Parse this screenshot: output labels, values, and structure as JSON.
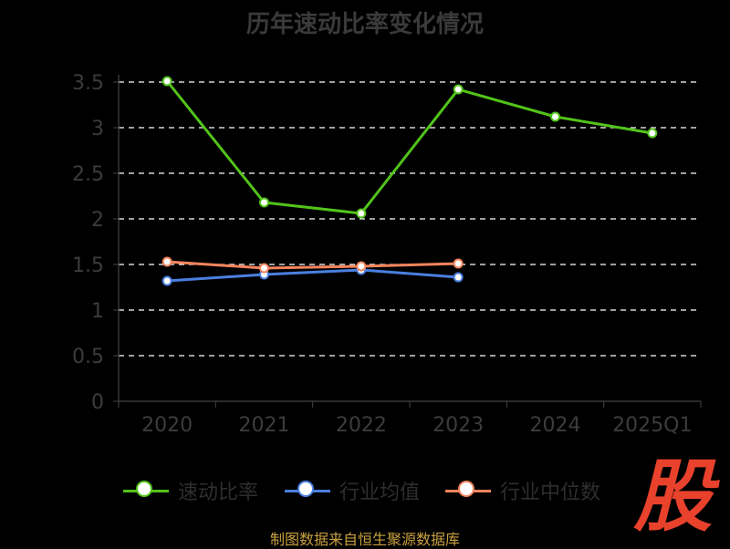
{
  "title": "历年速动比率变化情况",
  "source": "制图数据来自恒生聚源数据库",
  "logo_text": "股",
  "chart_data": {
    "type": "line",
    "title": "历年速动比率变化情况",
    "categories": [
      "2020",
      "2021",
      "2022",
      "2023",
      "2024",
      "2025Q1"
    ],
    "y_ticks": [
      "0",
      "0.5",
      "1",
      "1.5",
      "2",
      "2.5",
      "3",
      "3.5"
    ],
    "ylim": [
      0,
      3.5
    ],
    "grid": true,
    "legend_position": "bottom",
    "series": [
      {
        "name": "速动比率",
        "color": "#52c41a",
        "values": [
          3.51,
          2.18,
          2.06,
          3.42,
          3.12,
          2.94
        ]
      },
      {
        "name": "行业均值",
        "color": "#4a7fe0",
        "values": [
          1.32,
          1.39,
          1.44,
          1.36,
          null,
          null
        ]
      },
      {
        "name": "行业中位数",
        "color": "#f5845c",
        "values": [
          1.53,
          1.46,
          1.48,
          1.51,
          null,
          null
        ]
      }
    ]
  }
}
